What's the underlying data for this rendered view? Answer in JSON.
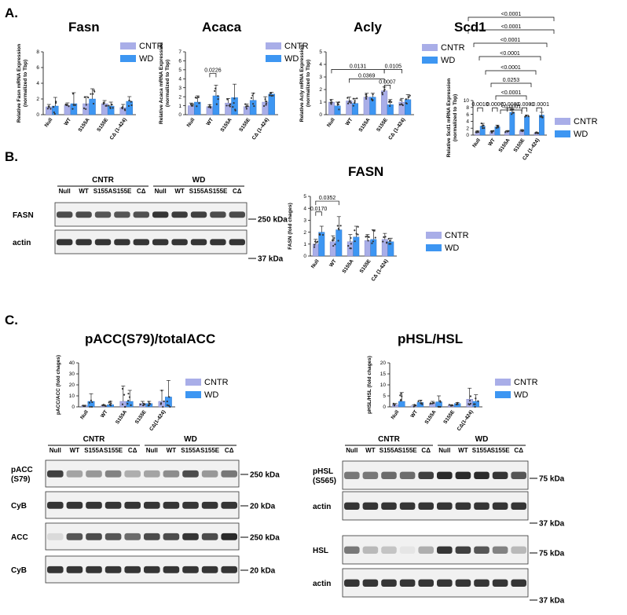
{
  "panel_labels": {
    "a": "A.",
    "b": "B.",
    "c": "C."
  },
  "legend": {
    "cntr": "CNTR",
    "wd": "WD"
  },
  "colors": {
    "cntr": "#a9aee8",
    "wd": "#3d96f2"
  },
  "chart_data": [
    {
      "id": "fasn",
      "type": "bar",
      "title": "Fasn",
      "ylabel": "Relative Fasn mRNA Expression (normalized to Tbp)",
      "categories": [
        "Null",
        "WT",
        "S155A",
        "S155E",
        "CΔ (1-424)"
      ],
      "ylim": [
        0,
        8
      ],
      "yticks": [
        0,
        2,
        4,
        6,
        8
      ],
      "series": [
        {
          "name": "CNTR",
          "values": [
            1.0,
            1.2,
            1.4,
            1.4,
            0.9
          ],
          "err": [
            0.3,
            0.3,
            0.9,
            0.4,
            0.4
          ]
        },
        {
          "name": "WD",
          "values": [
            1.1,
            1.4,
            2.0,
            1.1,
            1.7
          ],
          "err": [
            1.1,
            1.4,
            1.3,
            0.5,
            0.6
          ]
        }
      ],
      "pvalues": []
    },
    {
      "id": "acaca",
      "type": "bar",
      "title": "Acaca",
      "ylabel": "Relative Acaca mRNA Expression (normalized to Tbp)",
      "categories": [
        "Null",
        "WT",
        "S155A",
        "S155E",
        "CΔ (1-424)"
      ],
      "ylim": [
        0,
        7
      ],
      "yticks": [
        0,
        1,
        2,
        3,
        4,
        5,
        6,
        7
      ],
      "series": [
        {
          "name": "CNTR",
          "values": [
            1.0,
            0.9,
            1.3,
            0.9,
            1.4
          ],
          "err": [
            0.3,
            0.2,
            0.5,
            0.3,
            0.6
          ]
        },
        {
          "name": "WD",
          "values": [
            1.4,
            2.1,
            1.9,
            1.6,
            2.3
          ],
          "err": [
            0.7,
            1.2,
            1.5,
            0.8,
            0.2
          ]
        }
      ],
      "pvalues": [
        {
          "label": "0.0226",
          "from": [
            1,
            0
          ],
          "to": [
            1,
            1
          ],
          "y": 4.6
        }
      ]
    },
    {
      "id": "acly",
      "type": "bar",
      "title": "Acly",
      "ylabel": "Relative Acly mRNA Expression (normalized to Tbp)",
      "categories": [
        "Null",
        "WT",
        "S155A",
        "S155E",
        "CΔ (1-424)"
      ],
      "ylim": [
        0,
        5
      ],
      "yticks": [
        0,
        1,
        2,
        3,
        4,
        5
      ],
      "series": [
        {
          "name": "CNTR",
          "values": [
            1.0,
            1.1,
            1.4,
            1.9,
            1.0
          ],
          "err": [
            0.2,
            0.3,
            0.3,
            0.3,
            0.3
          ]
        },
        {
          "name": "WD",
          "values": [
            0.7,
            0.9,
            1.4,
            0.8,
            1.2
          ],
          "err": [
            0.3,
            0.4,
            0.3,
            0.4,
            0.4
          ]
        }
      ],
      "pvalues": [
        {
          "label": "0.0131",
          "from": [
            0,
            0
          ],
          "to": [
            3,
            0
          ],
          "y": 3.6
        },
        {
          "label": "0.0105",
          "from": [
            3,
            0
          ],
          "to": [
            4,
            0
          ],
          "y": 3.6
        },
        {
          "label": "0.0369",
          "from": [
            1,
            0
          ],
          "to": [
            3,
            0
          ],
          "y": 2.85
        },
        {
          "label": "0.0007",
          "from": [
            3,
            0
          ],
          "to": [
            3,
            1
          ],
          "y": 2.35
        }
      ]
    },
    {
      "id": "scd1",
      "type": "bar",
      "title": "Scd1",
      "ylabel": "Relative Scd1 mRNA Expression (normalized to Tbp)",
      "categories": [
        "Null",
        "WT",
        "S155A",
        "S155E",
        "CΔ (1-424)"
      ],
      "ylim": [
        0,
        10
      ],
      "yticks": [
        0,
        2,
        4,
        6,
        8,
        10
      ],
      "series": [
        {
          "name": "CNTR",
          "values": [
            1.0,
            1.0,
            1.0,
            1.3,
            0.6
          ],
          "err": [
            0.3,
            0.3,
            0.3,
            0.3,
            0.2
          ]
        },
        {
          "name": "WD",
          "values": [
            2.6,
            2.4,
            6.6,
            5.4,
            5.8
          ],
          "err": [
            0.8,
            0.5,
            0.9,
            0.4,
            0.8
          ]
        }
      ],
      "pvalues": [
        {
          "label": "0.0010",
          "from": [
            0,
            0
          ],
          "to": [
            0,
            1
          ],
          "y": 7.9
        },
        {
          "label": "0.0007",
          "from": [
            1,
            0
          ],
          "to": [
            1,
            1
          ],
          "y": 7.9
        },
        {
          "label": "<0.0001",
          "from": [
            2,
            0
          ],
          "to": [
            2,
            1
          ],
          "y": 7.9
        },
        {
          "label": "<0.0001",
          "from": [
            3,
            0
          ],
          "to": [
            3,
            1
          ],
          "y": 7.9
        },
        {
          "label": "<0.0001",
          "from": [
            4,
            0
          ],
          "to": [
            4,
            1
          ],
          "y": 7.9
        }
      ],
      "top_brackets": [
        "<0.0001",
        "<0.0001",
        "<0.0001",
        "<0.0001",
        "<0.0001",
        "0.0253",
        "<0.0001",
        "<0.0001"
      ]
    },
    {
      "id": "fasn_protein",
      "type": "bar",
      "title": "FASN",
      "ylabel": "FASN (fold chages)",
      "categories": [
        "Null",
        "WT",
        "S155A",
        "S155E",
        "CΔ (1-424)"
      ],
      "ylim": [
        0,
        5
      ],
      "yticks": [
        0,
        1,
        2,
        3,
        4,
        5
      ],
      "series": [
        {
          "name": "CNTR",
          "values": [
            1.0,
            1.2,
            1.2,
            1.3,
            1.4
          ],
          "err": [
            0.4,
            0.5,
            0.6,
            0.5,
            0.5
          ]
        },
        {
          "name": "WD",
          "values": [
            2.0,
            2.2,
            1.6,
            1.4,
            1.2
          ],
          "err": [
            0.5,
            1.1,
            0.9,
            0.8,
            0.3
          ]
        }
      ],
      "pvalues": [
        {
          "label": "0.0170",
          "from": [
            0,
            0
          ],
          "to": [
            0,
            1
          ],
          "y": 3.7
        },
        {
          "label": "0.0352",
          "from": [
            0,
            0
          ],
          "to": [
            1,
            1
          ],
          "y": 4.6
        }
      ]
    },
    {
      "id": "pacc_acc",
      "type": "bar",
      "title": "pACC(S79)/totalACC",
      "ylabel": "pACC/ACC (fold chages)",
      "categories": [
        "Null",
        "WT",
        "S155A",
        "S155E",
        "CΔ(1-424)"
      ],
      "ylim": [
        0,
        40
      ],
      "yticks": [
        0,
        10,
        20,
        30,
        40
      ],
      "series": [
        {
          "name": "CNTR",
          "values": [
            1.0,
            1.0,
            5.0,
            3.0,
            5.0
          ],
          "err": [
            0.5,
            1.0,
            14.0,
            2.0,
            10.0
          ]
        },
        {
          "name": "WD",
          "values": [
            5.0,
            2.0,
            5.0,
            3.0,
            9.0
          ],
          "err": [
            7.0,
            3.0,
            10.0,
            2.0,
            15.0
          ]
        }
      ],
      "pvalues": []
    },
    {
      "id": "phsl_hsl",
      "type": "bar",
      "title": "pHSL/HSL",
      "ylabel": "pHSL/HSL (fold chages)",
      "categories": [
        "Null",
        "WT",
        "S155A",
        "S155E",
        "CΔ(1-424)"
      ],
      "ylim": [
        0,
        20
      ],
      "yticks": [
        0,
        5,
        10,
        15,
        20
      ],
      "series": [
        {
          "name": "CNTR",
          "values": [
            1.0,
            0.5,
            1.5,
            0.6,
            3.5
          ],
          "err": [
            0.5,
            0.5,
            1.0,
            0.4,
            5.0
          ]
        },
        {
          "name": "WD",
          "values": [
            2.5,
            2.0,
            2.3,
            1.5,
            2.5
          ],
          "err": [
            4.0,
            1.0,
            2.7,
            0.5,
            3.0
          ]
        }
      ],
      "pvalues": []
    }
  ],
  "blots": {
    "b": {
      "groups": [
        "CNTR",
        "WD"
      ],
      "lanes": [
        "Null",
        "WT",
        "S155A",
        "S155E",
        "CΔ",
        "Null",
        "WT",
        "S155A",
        "S155E",
        "CΔ"
      ],
      "rows": [
        {
          "label": "FASN",
          "kda": "250 kDa"
        },
        {
          "label": "actin",
          "kda": "37 kDa"
        }
      ]
    },
    "c_left": {
      "groups": [
        "CNTR",
        "WD"
      ],
      "lanes": [
        "Null",
        "WT",
        "S155A",
        "S155E",
        "CΔ",
        "Null",
        "WT",
        "S155A",
        "S155E",
        "CΔ"
      ],
      "rows": [
        {
          "label": "pACC\n(S79)",
          "kda": "250 kDa"
        },
        {
          "label": "CyB",
          "kda": "20 kDa"
        },
        {
          "label": "ACC",
          "kda": "250 kDa"
        },
        {
          "label": "CyB",
          "kda": "20 kDa"
        }
      ]
    },
    "c_right": {
      "groups": [
        "CNTR",
        "WD"
      ],
      "lanes": [
        "Null",
        "WT",
        "S155A",
        "S155E",
        "CΔ",
        "Null",
        "WT",
        "S155A",
        "S155E",
        "CΔ"
      ],
      "rows": [
        {
          "label": "pHSL\n(S565)",
          "kda": "75 kDa"
        },
        {
          "label": "actin",
          "kda": "37 kDa"
        },
        {
          "label": "HSL",
          "kda": "75 kDa"
        },
        {
          "label": "actin",
          "kda": "37 kDa"
        }
      ]
    }
  }
}
